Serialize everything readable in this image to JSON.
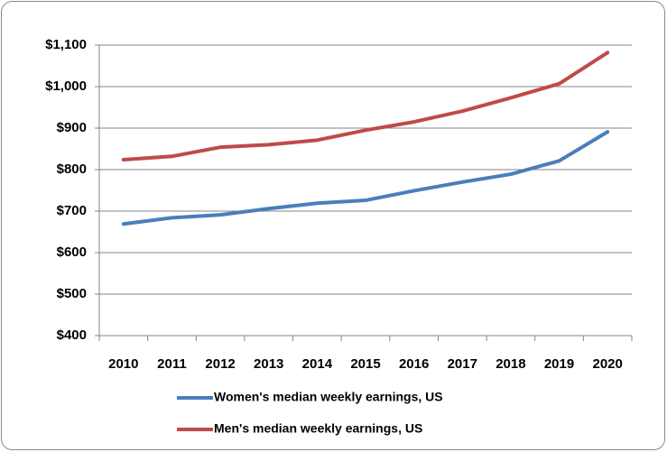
{
  "chart_data": {
    "type": "line",
    "categories": [
      "2010",
      "2011",
      "2012",
      "2013",
      "2014",
      "2015",
      "2016",
      "2017",
      "2018",
      "2019",
      "2020"
    ],
    "series": [
      {
        "name": "Women's median weekly earnings, US",
        "color": "#4a7ebb",
        "values": [
          669,
          684,
          691,
          706,
          719,
          726,
          749,
          770,
          789,
          821,
          891
        ]
      },
      {
        "name": "Men's median weekly earnings, US",
        "color": "#be4b48",
        "values": [
          824,
          832,
          854,
          860,
          871,
          895,
          915,
          941,
          973,
          1007,
          1082
        ]
      }
    ],
    "ylim": [
      400,
      1100
    ],
    "yticks": [
      {
        "value": 400,
        "label": "$400"
      },
      {
        "value": 500,
        "label": "$500"
      },
      {
        "value": 600,
        "label": "$600"
      },
      {
        "value": 700,
        "label": "$700"
      },
      {
        "value": 800,
        "label": "$800"
      },
      {
        "value": 900,
        "label": "$900"
      },
      {
        "value": 1000,
        "label": "$1,000"
      },
      {
        "value": 1100,
        "label": "$1,100"
      }
    ],
    "grid": true,
    "legend": "bottom"
  }
}
